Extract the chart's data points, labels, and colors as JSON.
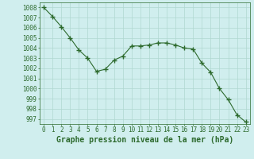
{
  "x": [
    0,
    1,
    2,
    3,
    4,
    5,
    6,
    7,
    8,
    9,
    10,
    11,
    12,
    13,
    14,
    15,
    16,
    17,
    18,
    19,
    20,
    21,
    22,
    23
  ],
  "y": [
    1008.0,
    1007.1,
    1006.1,
    1005.0,
    1003.8,
    1003.0,
    1001.7,
    1001.9,
    1002.8,
    1003.2,
    1004.2,
    1004.2,
    1004.3,
    1004.5,
    1004.5,
    1004.3,
    1004.0,
    1003.9,
    1002.5,
    1001.6,
    1000.0,
    998.9,
    997.4,
    996.7
  ],
  "line_color": "#2d6a2d",
  "marker_color": "#2d6a2d",
  "bg_color": "#d0eeee",
  "grid_color": "#b0d8d0",
  "title": "Graphe pression niveau de la mer (hPa)",
  "ylim": [
    996.5,
    1008.5
  ],
  "yticks": [
    997,
    998,
    999,
    1000,
    1001,
    1002,
    1003,
    1004,
    1005,
    1006,
    1007,
    1008
  ],
  "xlim": [
    -0.5,
    23.5
  ],
  "xticks": [
    0,
    1,
    2,
    3,
    4,
    5,
    6,
    7,
    8,
    9,
    10,
    11,
    12,
    13,
    14,
    15,
    16,
    17,
    18,
    19,
    20,
    21,
    22,
    23
  ],
  "tick_fontsize": 5.5,
  "title_fontsize": 7.0
}
